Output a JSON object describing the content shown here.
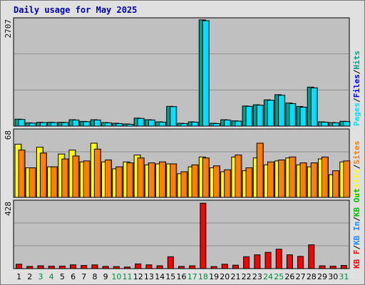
{
  "title": "Daily usage for May 2025",
  "colors": {
    "pages": "#00e0ff",
    "files": "#0000ff",
    "hits": "#009f8a",
    "visits": "#ffff00",
    "sites": "#ff8000",
    "kbin": "#1a8cff",
    "kbout": "#00c000",
    "kbf": "#ff0000",
    "weekday": "#000000",
    "weekend": "#008a3e"
  },
  "chart_data": [
    {
      "type": "bar",
      "name": "pages-files-hits",
      "categories": [
        "1",
        "2",
        "3",
        "4",
        "5",
        "6",
        "7",
        "8",
        "9",
        "10",
        "11",
        "12",
        "13",
        "14",
        "15",
        "16",
        "17",
        "18",
        "19",
        "20",
        "21",
        "22",
        "23",
        "24",
        "25",
        "26",
        "27",
        "28",
        "29",
        "30",
        "31"
      ],
      "ymax_label": "2707",
      "ylim": [
        0,
        2707
      ],
      "grid": true,
      "legend": [
        "Pages",
        "/",
        "Files",
        "/",
        "Hits"
      ],
      "series": [
        {
          "name": "Hits",
          "color": "hits",
          "values": [
            176,
            83,
            97,
            97,
            97,
            162,
            119,
            162,
            90,
            72,
            54,
            203,
            162,
            108,
            500,
            72,
            108,
            2690,
            72,
            162,
            133,
            510,
            540,
            666,
            796,
            586,
            497,
            987,
            108,
            90,
            122
          ]
        },
        {
          "name": "Pages",
          "color": "pages",
          "values": [
            168,
            76,
            90,
            90,
            90,
            155,
            112,
            155,
            83,
            65,
            47,
            196,
            155,
            101,
            493,
            65,
            101,
            2670,
            65,
            155,
            126,
            500,
            530,
            656,
            780,
            570,
            480,
            970,
            101,
            83,
            115
          ]
        }
      ]
    },
    {
      "type": "bar",
      "name": "visits-sites",
      "ymax_label": "68",
      "ylim": [
        0,
        68
      ],
      "grid": true,
      "legend": [
        "Visits",
        "/",
        "Sites"
      ],
      "series": [
        {
          "name": "Visits",
          "color": "visits",
          "values": [
            54,
            30,
            51,
            31,
            44,
            48,
            36,
            55,
            36,
            29,
            36,
            43,
            33,
            34,
            34,
            24,
            31,
            41,
            30,
            26,
            41,
            27,
            40,
            33,
            37,
            40,
            33,
            31,
            39,
            23,
            36
          ]
        },
        {
          "name": "Sites",
          "color": "sites",
          "values": [
            48,
            30,
            45,
            31,
            39,
            42,
            37,
            49,
            38,
            31,
            35,
            40,
            35,
            36,
            34,
            26,
            33,
            40,
            32,
            28,
            43,
            30,
            55,
            36,
            38,
            41,
            35,
            35,
            41,
            27,
            37
          ]
        }
      ]
    },
    {
      "type": "bar",
      "name": "kbytes",
      "ymax_label": "428",
      "ylim": [
        0,
        428
      ],
      "grid": true,
      "legend": [
        "KB F",
        "/",
        "KB In",
        "/",
        "KB Out"
      ],
      "series": [
        {
          "name": "KB F",
          "color": "kbf",
          "values": [
            28,
            14,
            18,
            16,
            16,
            24,
            20,
            24,
            14,
            13,
            10,
            30,
            24,
            18,
            76,
            14,
            18,
            418,
            13,
            28,
            22,
            76,
            88,
            104,
            124,
            88,
            78,
            152,
            18,
            16,
            20
          ]
        }
      ]
    }
  ]
}
